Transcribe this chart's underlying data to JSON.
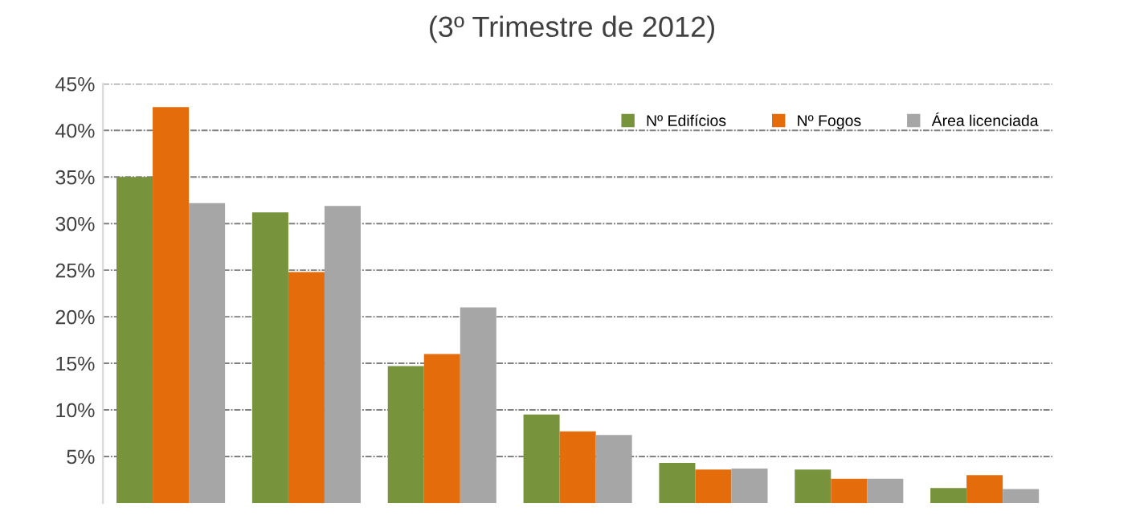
{
  "chart_data": {
    "type": "bar",
    "title": "(3º Trimestre de 2012)",
    "categories": [
      null,
      null,
      null,
      null,
      null,
      null,
      null
    ],
    "series": [
      {
        "name": "Nº Edifícios",
        "color": "#77933c",
        "values": [
          35.0,
          31.2,
          14.7,
          9.5,
          4.3,
          3.6,
          1.6
        ]
      },
      {
        "name": "Nº Fogos",
        "color": "#e46c0a",
        "values": [
          42.5,
          24.8,
          16.0,
          7.7,
          3.6,
          2.6,
          3.0
        ]
      },
      {
        "name": "Área licenciada",
        "color": "#a6a6a6",
        "values": [
          32.2,
          31.9,
          21.0,
          7.3,
          3.7,
          2.6,
          1.5
        ]
      }
    ],
    "ylim": [
      0,
      45
    ],
    "yticks": [
      {
        "value": 5,
        "label": "5%"
      },
      {
        "value": 10,
        "label": "10%"
      },
      {
        "value": 15,
        "label": "15%"
      },
      {
        "value": 20,
        "label": "20%"
      },
      {
        "value": 25,
        "label": "25%"
      },
      {
        "value": 30,
        "label": "30%"
      },
      {
        "value": 35,
        "label": "35%"
      },
      {
        "value": 40,
        "label": "40%"
      },
      {
        "value": 45,
        "label": "45%"
      }
    ],
    "grid": "y",
    "legend": "top right"
  }
}
